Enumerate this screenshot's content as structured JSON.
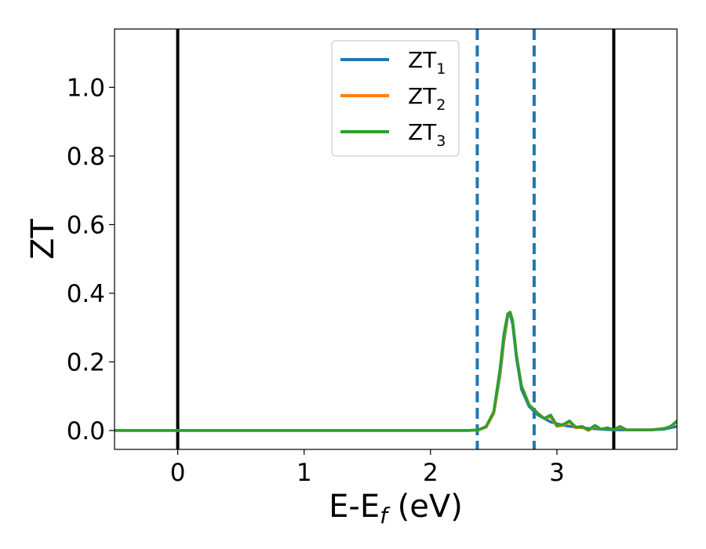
{
  "chart_data": {
    "type": "line",
    "xlabel": "E-E",
    "xlabel_sub": "f",
    "xlabel_suffix": " (eV)",
    "ylabel": "ZT",
    "xlim": [
      -0.5,
      3.95
    ],
    "ylim": [
      -0.055,
      1.17
    ],
    "x_ticks": [
      0,
      1,
      2,
      3
    ],
    "y_ticks": [
      0.0,
      0.2,
      0.4,
      0.6,
      0.8,
      1.0
    ],
    "x_tick_labels": [
      "0",
      "1",
      "2",
      "3"
    ],
    "y_tick_labels": [
      "0.0",
      "0.2",
      "0.4",
      "0.6",
      "0.8",
      "1.0"
    ],
    "grid": false,
    "legend_position": "top-center",
    "vlines": [
      {
        "x": 0.0,
        "style": "solid",
        "color": "#000000"
      },
      {
        "x": 3.45,
        "style": "solid",
        "color": "#000000"
      },
      {
        "x": 2.37,
        "style": "dashed",
        "color": "#1f77b4"
      },
      {
        "x": 2.82,
        "style": "dashed",
        "color": "#1f77b4"
      }
    ],
    "series": [
      {
        "name": "ZT",
        "name_sub": "1",
        "color": "#1f77b4",
        "x": [
          -0.5,
          2.3,
          2.38,
          2.44,
          2.5,
          2.55,
          2.58,
          2.61,
          2.63,
          2.65,
          2.68,
          2.72,
          2.78,
          2.85,
          2.95,
          3.05,
          3.15,
          3.25,
          3.35,
          3.45,
          3.55,
          3.65,
          3.75,
          3.85,
          3.95
        ],
        "values": [
          0,
          0,
          0.002,
          0.01,
          0.05,
          0.16,
          0.26,
          0.33,
          0.34,
          0.31,
          0.21,
          0.12,
          0.07,
          0.045,
          0.025,
          0.015,
          0.01,
          0.006,
          0.004,
          0.002,
          0.002,
          0.002,
          0.002,
          0.004,
          0.012
        ]
      },
      {
        "name": "ZT",
        "name_sub": "2",
        "color": "#ff7f0e",
        "x": [
          -0.5,
          2.3,
          2.38,
          2.44,
          2.5,
          2.55,
          2.58,
          2.61,
          2.63,
          2.65,
          2.68,
          2.72,
          2.78,
          2.85,
          2.9,
          2.95,
          3.0,
          3.05,
          3.1,
          3.15,
          3.2,
          3.25,
          3.3,
          3.35,
          3.4,
          3.45,
          3.5,
          3.55,
          3.65,
          3.75,
          3.85,
          3.9,
          3.95
        ],
        "values": [
          0,
          0,
          0.002,
          0.01,
          0.05,
          0.17,
          0.27,
          0.335,
          0.345,
          0.32,
          0.22,
          0.13,
          0.075,
          0.05,
          0.035,
          0.04,
          0.012,
          0.015,
          0.025,
          0.008,
          0.01,
          0.0,
          0.012,
          0.004,
          0.008,
          0.002,
          0.01,
          0.002,
          0.002,
          0.002,
          0.006,
          0.012,
          0.025
        ]
      },
      {
        "name": "ZT",
        "name_sub": "3",
        "color": "#2ca02c",
        "x": [
          -0.5,
          2.3,
          2.38,
          2.44,
          2.5,
          2.55,
          2.58,
          2.61,
          2.63,
          2.65,
          2.68,
          2.72,
          2.78,
          2.85,
          2.9,
          2.95,
          3.0,
          3.05,
          3.1,
          3.15,
          3.2,
          3.25,
          3.3,
          3.35,
          3.4,
          3.45,
          3.5,
          3.55,
          3.65,
          3.75,
          3.85,
          3.9,
          3.95
        ],
        "values": [
          0,
          0,
          0.002,
          0.012,
          0.055,
          0.18,
          0.28,
          0.34,
          0.345,
          0.32,
          0.22,
          0.13,
          0.075,
          0.05,
          0.035,
          0.045,
          0.015,
          0.018,
          0.028,
          0.01,
          0.012,
          0.002,
          0.015,
          0.004,
          0.008,
          0.002,
          0.012,
          0.002,
          0.002,
          0.002,
          0.006,
          0.012,
          0.028
        ]
      }
    ]
  }
}
